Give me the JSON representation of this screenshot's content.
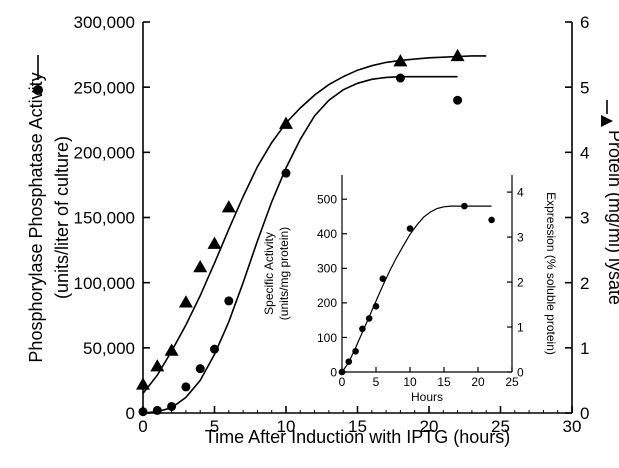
{
  "chart_data": [
    {
      "type": "scatter",
      "xlabel": "Time After Induction with IPTG (hours)",
      "ylabel_left_line1": "Phosphorylase Phosphatase Activity",
      "ylabel_left_line2": "(units/liter of culture)",
      "ylabel_right": "Protein (mg/ml) lysate",
      "xlim": [
        0,
        30
      ],
      "ylim_left": [
        0,
        300000
      ],
      "ylim_right": [
        0,
        6
      ],
      "x_ticks": [
        0,
        5,
        10,
        15,
        20,
        25,
        30
      ],
      "x_tick_labels": [
        "0",
        "5",
        "10",
        "15",
        "20",
        "25",
        "30"
      ],
      "y_left_ticks": [
        0,
        50000,
        100000,
        150000,
        200000,
        250000,
        300000
      ],
      "y_left_tick_labels": [
        "0",
        "50,000",
        "100,000",
        "150,000",
        "200,000",
        "250,000",
        "300,000"
      ],
      "y_right_ticks": [
        0,
        1,
        2,
        3,
        4,
        5,
        6
      ],
      "y_right_tick_labels": [
        "0",
        "1",
        "2",
        "3",
        "4",
        "5",
        "6"
      ],
      "series": [
        {
          "marker": "circle",
          "axis": "left",
          "x": [
            0,
            1,
            2,
            3,
            4,
            5,
            6,
            10,
            18,
            22
          ],
          "y": [
            1000,
            2000,
            5000,
            20000,
            34000,
            49000,
            86000,
            184000,
            257000,
            240000
          ],
          "fit_x": [
            0,
            1,
            2,
            3,
            4,
            5,
            6,
            7,
            8,
            9,
            10,
            11,
            12,
            13,
            14,
            15,
            16,
            17,
            18,
            19,
            20,
            21,
            22
          ],
          "fit_y": [
            0,
            1000,
            4000,
            12000,
            25000,
            45000,
            70000,
            100000,
            132000,
            162000,
            188000,
            210000,
            228000,
            240000,
            248000,
            253000,
            256000,
            257500,
            258000,
            258000,
            258000,
            258000,
            258000
          ]
        },
        {
          "marker": "triangle",
          "axis": "right",
          "x": [
            0,
            1,
            2,
            3,
            4,
            5,
            6,
            10,
            18,
            22
          ],
          "y": [
            0.44,
            0.72,
            0.96,
            1.7,
            2.24,
            2.6,
            3.16,
            4.44,
            5.4,
            5.48
          ],
          "fit_x": [
            0,
            1,
            2,
            3,
            4,
            5,
            6,
            7,
            8,
            9,
            10,
            11,
            12,
            13,
            14,
            15,
            16,
            17,
            18,
            19,
            20,
            21,
            22,
            23,
            24
          ],
          "fit_y": [
            0.3,
            0.58,
            0.95,
            1.35,
            1.8,
            2.3,
            2.82,
            3.32,
            3.78,
            4.15,
            4.45,
            4.68,
            4.88,
            5.04,
            5.16,
            5.26,
            5.33,
            5.38,
            5.41,
            5.43,
            5.45,
            5.46,
            5.47,
            5.48,
            5.48
          ]
        }
      ]
    },
    {
      "type": "scatter",
      "xlabel": "Hours",
      "ylabel_left_line1": "Specific Activity",
      "ylabel_left_line2": "(units/mg protein)",
      "ylabel_right": "Expression (% soluble protein)",
      "xlim": [
        0,
        25
      ],
      "ylim_left": [
        0,
        570
      ],
      "ylim_right": [
        0,
        4.38
      ],
      "x_ticks": [
        0,
        5,
        10,
        15,
        20,
        25
      ],
      "x_tick_labels": [
        "0",
        "5",
        "10",
        "15",
        "20",
        "25"
      ],
      "y_left_ticks": [
        0,
        100,
        200,
        300,
        400,
        500
      ],
      "y_left_tick_labels": [
        "0",
        "100",
        "200",
        "300",
        "400",
        "500"
      ],
      "y_right_ticks": [
        0,
        1,
        2,
        3,
        4
      ],
      "y_right_tick_labels": [
        "0",
        "1",
        "2",
        "3",
        "4"
      ],
      "series": [
        {
          "marker": "circle",
          "axis": "left",
          "x": [
            0,
            1,
            2,
            3,
            4,
            5,
            6,
            10,
            18,
            22
          ],
          "y": [
            0,
            30,
            60,
            125,
            155,
            190,
            270,
            415,
            480,
            440
          ],
          "fit_x": [
            0,
            1,
            2,
            3,
            4,
            5,
            6,
            7,
            8,
            9,
            10,
            11,
            12,
            13,
            14,
            15,
            16,
            17,
            18,
            19,
            20,
            21,
            22
          ],
          "fit_y": [
            0,
            28,
            70,
            115,
            160,
            205,
            250,
            292,
            330,
            365,
            398,
            425,
            448,
            463,
            473,
            478,
            480,
            480,
            480,
            480,
            480,
            480,
            480
          ]
        }
      ]
    }
  ]
}
